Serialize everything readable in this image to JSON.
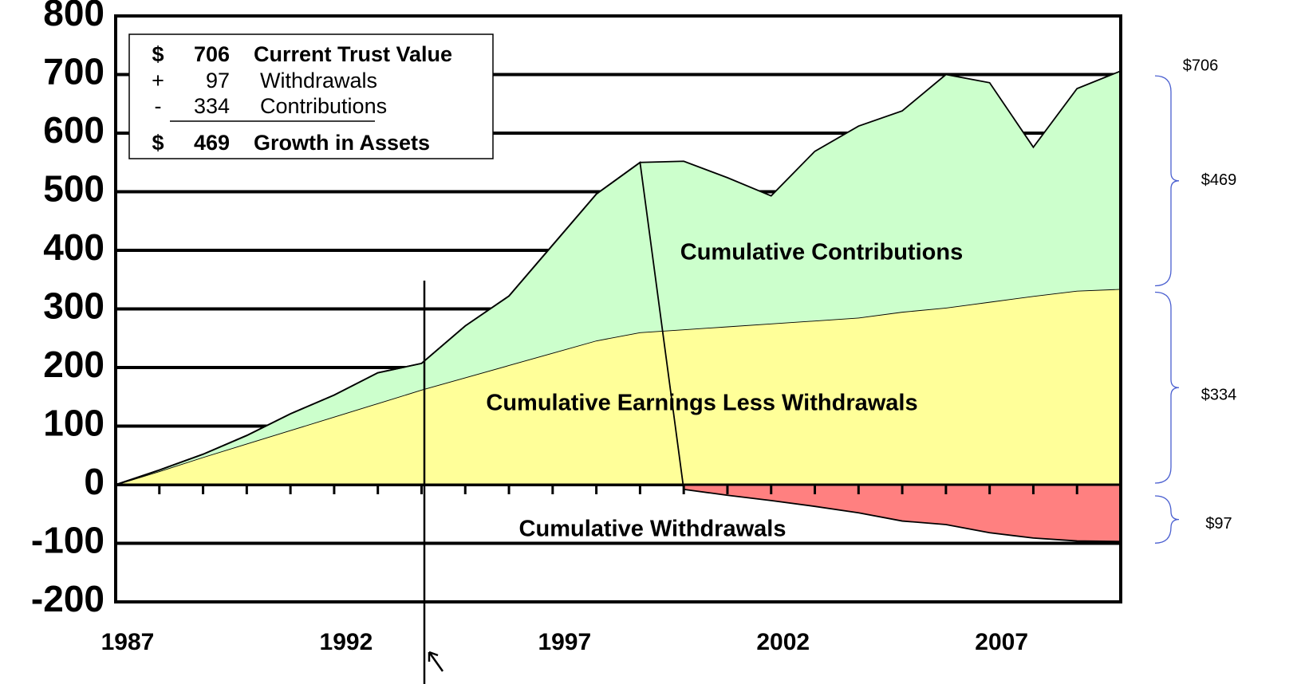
{
  "chart_data": {
    "type": "stacked_area",
    "x": [
      1987,
      1988,
      1989,
      1990,
      1991,
      1992,
      1993,
      1994,
      1995,
      1996,
      1997,
      1998,
      1999,
      2000,
      2001,
      2002,
      2003,
      2004,
      2005,
      2006,
      2007,
      2008,
      2009,
      2010
    ],
    "series": [
      {
        "name": "Cumulative Contributions",
        "color": "#ffff99",
        "values": [
          0,
          23,
          47,
          70,
          93,
          116,
          139,
          162,
          183,
          204,
          225,
          246,
          260,
          265,
          270,
          275,
          280,
          285,
          295,
          302,
          312,
          322,
          331,
          334
        ]
      },
      {
        "name": "Cumulative Earnings Less Withdrawals",
        "color": "#ccffcc",
        "values": [
          0,
          2,
          5,
          14,
          28,
          37,
          52,
          45,
          88,
          118,
          184,
          250,
          290,
          287,
          254,
          218,
          289,
          327,
          343,
          398,
          374,
          254,
          345,
          372
        ]
      },
      {
        "name": "Cumulative Withdrawals",
        "color": "#ff8080",
        "values": [
          0,
          0,
          0,
          0,
          0,
          0,
          0,
          0,
          0,
          0,
          0,
          0,
          0,
          -8,
          -18,
          -27,
          -37,
          -48,
          -62,
          -68,
          -82,
          -91,
          -96,
          -97
        ]
      }
    ],
    "xlim": [
      1987,
      2010
    ],
    "xticks": [
      1987,
      1992,
      1997,
      2002,
      2007
    ],
    "ylim": [
      -200,
      800
    ],
    "yticks": [
      -200,
      -100,
      0,
      100,
      200,
      300,
      400,
      500,
      600,
      700,
      800
    ],
    "grid": true,
    "summary": [
      {
        "sign": "$",
        "value": "706",
        "label": "Current Trust Value"
      },
      {
        "sign": "+",
        "value": "97",
        "label": "Withdrawals"
      },
      {
        "sign": "-",
        "value": "334",
        "label": "Contributions"
      },
      {
        "sign": "$",
        "value": "469",
        "label": "Growth in Assets"
      }
    ],
    "annotations": [
      "$706",
      "$469",
      "$334",
      "$97"
    ]
  }
}
